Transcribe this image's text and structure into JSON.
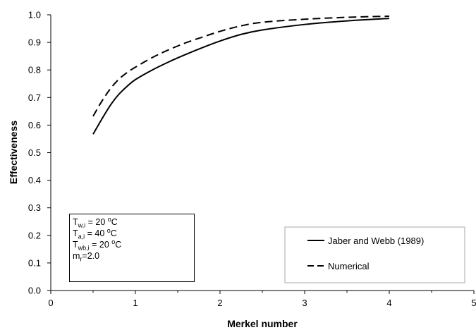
{
  "chart_data": {
    "type": "line",
    "xlabel": "Merkel number",
    "ylabel": "Effectiveness",
    "xlim": [
      0,
      5
    ],
    "ylim": [
      0.0,
      1.0
    ],
    "x_ticks": [
      "0",
      "1",
      "2",
      "3",
      "4",
      "5"
    ],
    "y_ticks": [
      "0.0",
      "0.1",
      "0.2",
      "0.3",
      "0.4",
      "0.5",
      "0.6",
      "0.7",
      "0.8",
      "0.9",
      "1.0"
    ],
    "grid": false,
    "legend_position": "bottom-right",
    "series": [
      {
        "name": "Jaber and Webb (1989)",
        "style": "solid",
        "color": "#000000",
        "x": [
          0.5,
          0.6,
          0.7,
          0.8,
          0.9,
          1.0,
          1.2,
          1.4,
          1.6,
          1.8,
          2.0,
          2.25,
          2.5,
          3.0,
          3.5,
          4.0
        ],
        "y": [
          0.567,
          0.62,
          0.67,
          0.71,
          0.74,
          0.765,
          0.8,
          0.83,
          0.857,
          0.882,
          0.905,
          0.929,
          0.945,
          0.965,
          0.978,
          0.987
        ]
      },
      {
        "name": "Numerical",
        "style": "dashed",
        "color": "#000000",
        "x": [
          0.5,
          0.6,
          0.7,
          0.8,
          0.9,
          1.0,
          1.2,
          1.4,
          1.6,
          1.8,
          2.0,
          2.25,
          2.5,
          3.0,
          3.5,
          4.0
        ],
        "y": [
          0.632,
          0.685,
          0.73,
          0.765,
          0.79,
          0.81,
          0.845,
          0.874,
          0.899,
          0.92,
          0.94,
          0.96,
          0.973,
          0.984,
          0.991,
          0.995
        ]
      }
    ]
  },
  "conditions": {
    "line1_main": "T",
    "line1_sub": "w,i",
    "line1_rest": " = 20 ",
    "line1_sup": "o",
    "line1_unit": "C",
    "line2_main": "T",
    "line2_sub": "a,i",
    "line2_rest": " = 40 ",
    "line2_sup": "o",
    "line2_unit": "C",
    "line3_main": "T",
    "line3_sub": "wb,i",
    "line3_rest": " = 20 ",
    "line3_sup": "o",
    "line3_unit": "C",
    "line4_main": "m",
    "line4_sub": "r",
    "line4_rest": "=2.0"
  }
}
